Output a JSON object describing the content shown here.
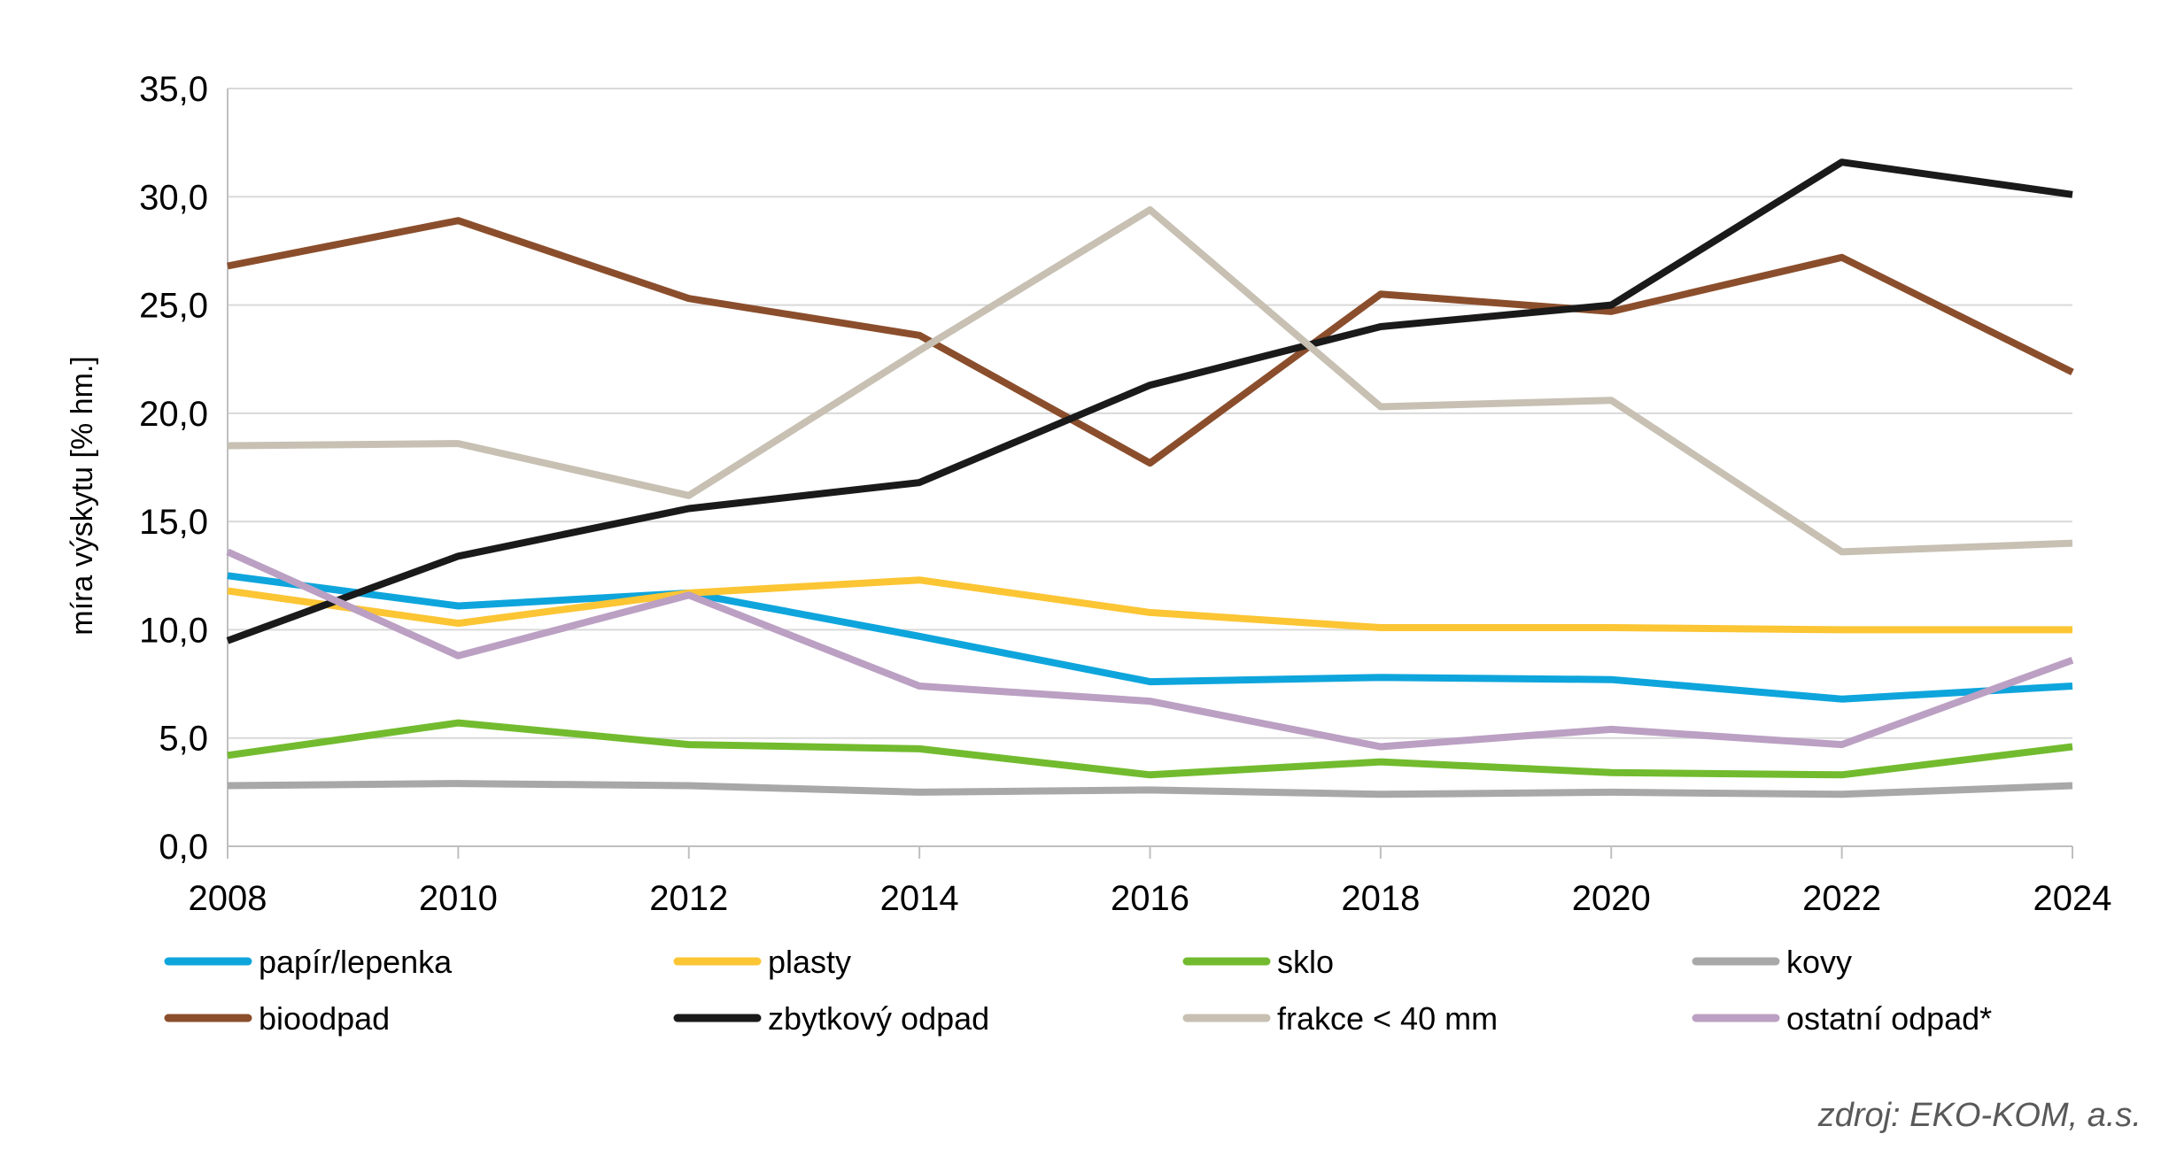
{
  "chart_data": {
    "type": "line",
    "title": "",
    "xlabel": "",
    "ylabel": "míra výskytu  [% hm.]",
    "x": [
      "2008",
      "2010",
      "2012",
      "2014",
      "2016",
      "2018",
      "2020",
      "2022",
      "2024"
    ],
    "ylim": [
      0,
      35
    ],
    "y_ticks": [
      "0,0",
      "5,0",
      "10,0",
      "15,0",
      "20,0",
      "25,0",
      "30,0",
      "35,0"
    ],
    "grid": true,
    "legend_position": "bottom",
    "series": [
      {
        "name": "papír/lepenka",
        "color": "#0ea5dc",
        "values": [
          12.5,
          11.1,
          11.7,
          9.7,
          7.6,
          7.8,
          7.7,
          6.8,
          7.4
        ]
      },
      {
        "name": "plasty",
        "color": "#fbc534",
        "values": [
          11.8,
          10.3,
          11.7,
          12.3,
          10.8,
          10.1,
          10.1,
          10.0,
          10.0
        ]
      },
      {
        "name": "sklo",
        "color": "#72bb2e",
        "values": [
          4.2,
          5.7,
          4.7,
          4.5,
          3.3,
          3.9,
          3.4,
          3.3,
          4.6
        ]
      },
      {
        "name": "kovy",
        "color": "#a8a8a8",
        "values": [
          2.8,
          2.9,
          2.8,
          2.5,
          2.6,
          2.4,
          2.5,
          2.4,
          2.8
        ]
      },
      {
        "name": "bioodpad",
        "color": "#8b4e2c",
        "values": [
          26.8,
          28.9,
          25.3,
          23.6,
          17.7,
          25.5,
          24.7,
          27.2,
          21.9
        ]
      },
      {
        "name": "zbytkový odpad",
        "color": "#1a1a1a",
        "values": [
          9.5,
          13.4,
          15.6,
          16.8,
          21.3,
          24.0,
          25.0,
          31.6,
          30.1
        ]
      },
      {
        "name": "frakce < 40 mm",
        "color": "#c7c0b3",
        "values": [
          18.5,
          18.6,
          16.2,
          22.9,
          29.4,
          20.3,
          20.6,
          13.6,
          14.0
        ]
      },
      {
        "name": "ostatní odpad*",
        "color": "#bba0c3",
        "values": [
          13.6,
          8.8,
          11.6,
          7.4,
          6.7,
          4.6,
          5.4,
          4.7,
          8.6
        ]
      }
    ],
    "source_note": "zdroj: EKO-KOM, a.s."
  }
}
